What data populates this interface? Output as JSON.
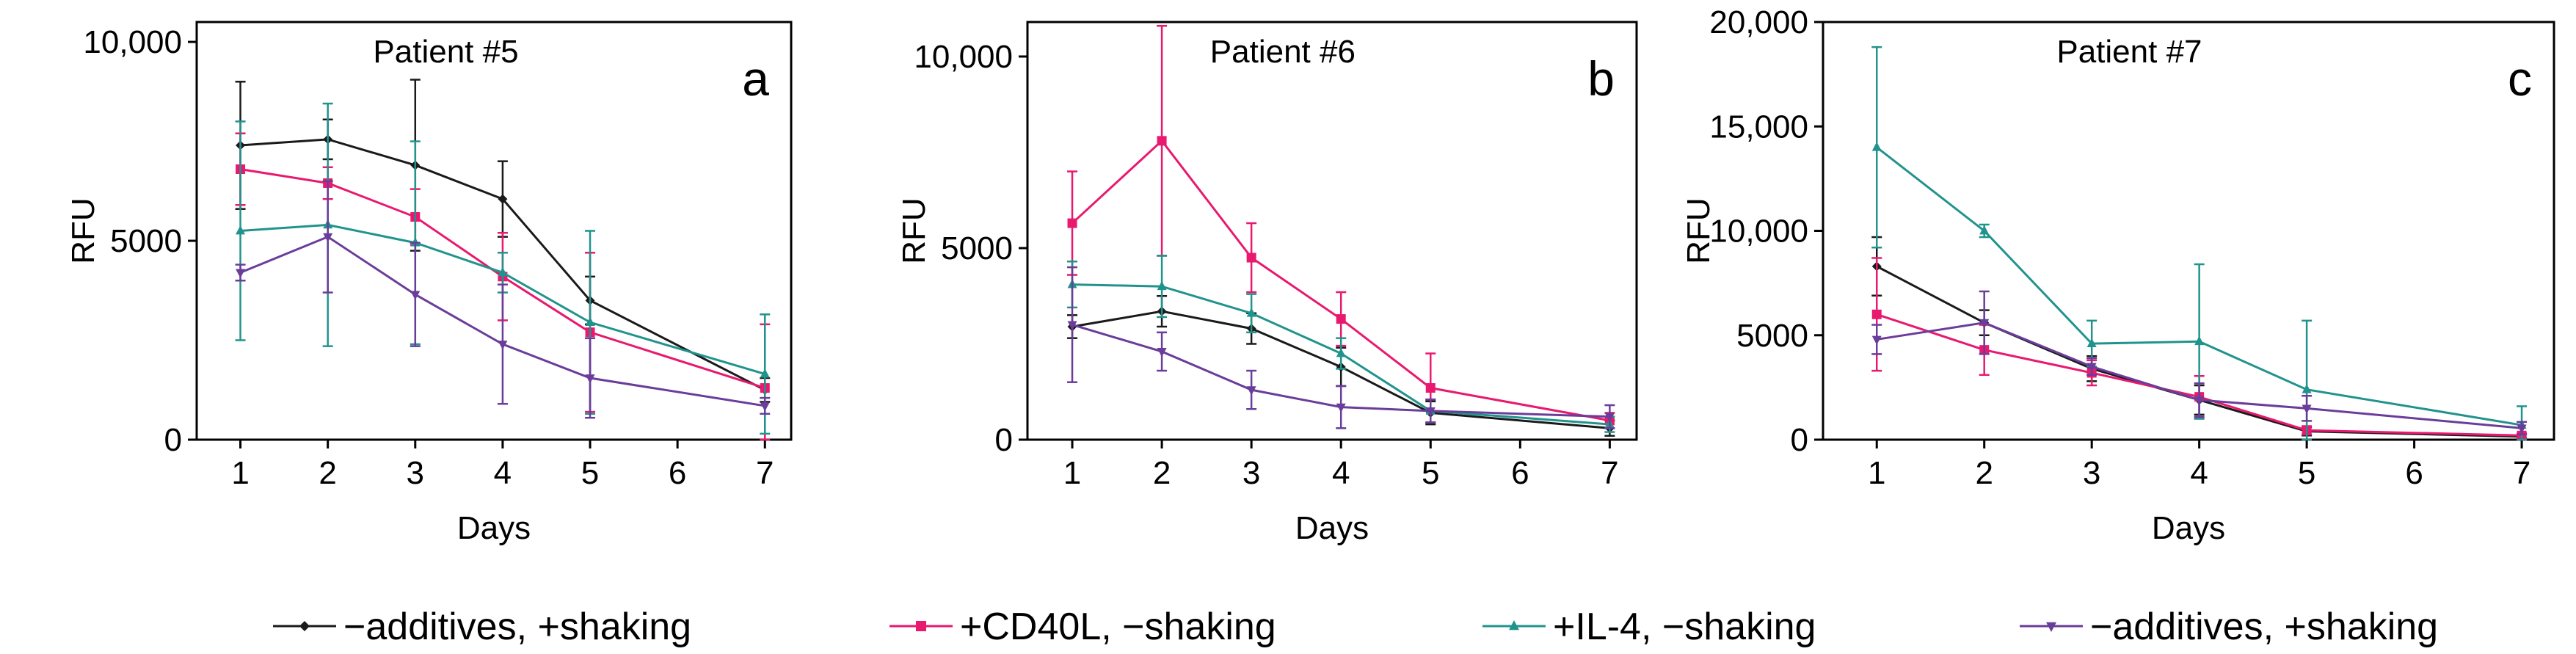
{
  "chart_data": [
    {
      "type": "line",
      "panel_label": "a",
      "title": "Patient #5",
      "xlabel": "Days",
      "ylabel": "RFU",
      "x": [
        1,
        2,
        3,
        4,
        5,
        6,
        7
      ],
      "xlim": [
        0.5,
        7.3
      ],
      "ylim": [
        0,
        10500
      ],
      "yticks": [
        0,
        5000,
        10000
      ],
      "ytick_labels": [
        "0",
        "5000",
        "10,000"
      ],
      "series": [
        {
          "name": "−additives, +shaking",
          "x": [
            1,
            2,
            3,
            4,
            5,
            7
          ],
          "values": [
            7400,
            7550,
            6900,
            6050,
            3500,
            1250
          ],
          "errors": [
            1600,
            500,
            2150,
            950,
            600,
            300
          ]
        },
        {
          "name": "+CD40L, −shaking",
          "x": [
            1,
            2,
            3,
            4,
            5,
            7
          ],
          "values": [
            6800,
            6450,
            5600,
            4100,
            2700,
            1300
          ],
          "errors": [
            900,
            400,
            700,
            1100,
            2000,
            1600
          ]
        },
        {
          "name": "+IL-4, −shaking",
          "x": [
            1,
            2,
            3,
            4,
            5,
            7
          ],
          "values": [
            5250,
            5400,
            4950,
            4200,
            2950,
            1650
          ],
          "errors": [
            2750,
            3050,
            2550,
            500,
            2300,
            1500
          ]
        },
        {
          "name": "−additives, +shaking",
          "x": [
            1,
            2,
            3,
            4,
            5,
            7
          ],
          "values": [
            4200,
            5100,
            3650,
            2400,
            1550,
            850
          ],
          "errors": [
            200,
            1400,
            1300,
            1500,
            1000,
            200
          ]
        }
      ]
    },
    {
      "type": "line",
      "panel_label": "b",
      "title": "Patient #6",
      "xlabel": "Days",
      "ylabel": "RFU",
      "x": [
        1,
        2,
        3,
        4,
        5,
        6,
        7
      ],
      "xlim": [
        0.5,
        7.3
      ],
      "ylim": [
        0,
        10900
      ],
      "yticks": [
        0,
        5000,
        10000
      ],
      "ytick_labels": [
        "0",
        "5000",
        "10,000"
      ],
      "series": [
        {
          "name": "−additives, +shaking",
          "x": [
            1,
            2,
            3,
            4,
            5,
            7
          ],
          "values": [
            2950,
            3350,
            2900,
            1900,
            700,
            300
          ],
          "errors": [
            300,
            400,
            400,
            500,
            300,
            200
          ]
        },
        {
          "name": "+CD40L, −shaking",
          "x": [
            1,
            2,
            3,
            4,
            5,
            7
          ],
          "values": [
            5650,
            7800,
            4750,
            3150,
            1350,
            500
          ],
          "errors": [
            1350,
            3000,
            900,
            700,
            900,
            200
          ]
        },
        {
          "name": "+IL-4, −shaking",
          "x": [
            1,
            2,
            3,
            4,
            5,
            7
          ],
          "values": [
            4050,
            4000,
            3300,
            2250,
            750,
            400
          ],
          "errors": [
            600,
            800,
            500,
            400,
            300,
            200
          ]
        },
        {
          "name": "−additives, +shaking",
          "x": [
            1,
            2,
            3,
            4,
            5,
            7
          ],
          "values": [
            3000,
            2300,
            1300,
            850,
            750,
            600
          ],
          "errors": [
            1500,
            500,
            500,
            550,
            300,
            300
          ]
        }
      ]
    },
    {
      "type": "line",
      "panel_label": "c",
      "title": "Patient #7",
      "xlabel": "Days",
      "ylabel": "RFU",
      "x": [
        1,
        2,
        3,
        4,
        5,
        6,
        7
      ],
      "xlim": [
        0.5,
        7.3
      ],
      "ylim": [
        0,
        20000
      ],
      "yticks": [
        0,
        5000,
        10000,
        15000,
        20000
      ],
      "ytick_labels": [
        "0",
        "5000",
        "10,000",
        "15,000",
        "20,000"
      ],
      "series": [
        {
          "name": "−additives, +shaking",
          "x": [
            1,
            2,
            3,
            4,
            5,
            7
          ],
          "values": [
            8300,
            5600,
            3400,
            1900,
            400,
            150
          ],
          "errors": [
            1400,
            600,
            600,
            700,
            200,
            100
          ]
        },
        {
          "name": "+CD40L, −shaking",
          "x": [
            1,
            2,
            3,
            4,
            5,
            7
          ],
          "values": [
            6000,
            4300,
            3200,
            2050,
            450,
            200
          ],
          "errors": [
            2700,
            1200,
            600,
            1000,
            200,
            100
          ]
        },
        {
          "name": "+IL-4, −shaking",
          "x": [
            1,
            2,
            3,
            4,
            5,
            7
          ],
          "values": [
            14000,
            10000,
            4600,
            4700,
            2400,
            700
          ],
          "errors": [
            4800,
            300,
            1100,
            3700,
            3300,
            900
          ]
        },
        {
          "name": "−additives, +shaking",
          "x": [
            1,
            2,
            3,
            4,
            5,
            7
          ],
          "values": [
            4800,
            5600,
            3500,
            1900,
            1500,
            550
          ],
          "errors": [
            700,
            1500,
            400,
            800,
            600,
            300
          ]
        }
      ]
    }
  ],
  "legend": {
    "entries": [
      {
        "label": "−additives, +shaking",
        "color": "#1a1a1a",
        "marker": "diamond"
      },
      {
        "label": "+CD40L, −shaking",
        "color": "#e8196e",
        "marker": "square"
      },
      {
        "label": "+IL-4, −shaking",
        "color": "#21938d",
        "marker": "triangle-up"
      },
      {
        "label": "−additives, +shaking",
        "color": "#6a3d9a",
        "marker": "triangle-down"
      }
    ]
  },
  "series_colors": [
    "#1a1a1a",
    "#e8196e",
    "#21938d",
    "#6a3d9a"
  ]
}
